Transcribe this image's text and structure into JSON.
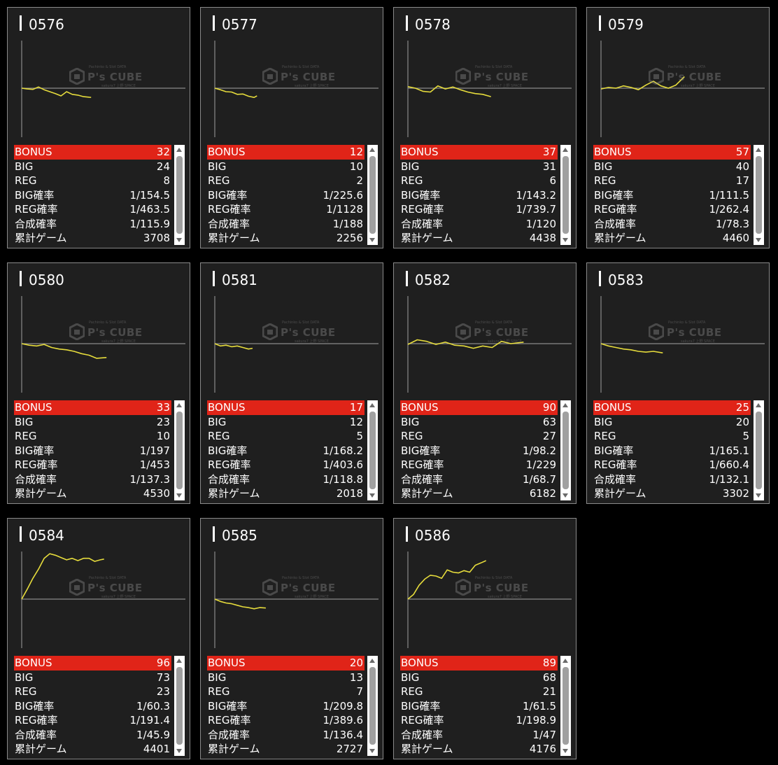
{
  "labels": {
    "bonus": "BONUS",
    "big": "BIG",
    "reg": "REG",
    "big_rate": "BIG確率",
    "reg_rate": "REG確率",
    "combined_rate": "合成確率",
    "total_games": "累計ゲーム"
  },
  "watermark": {
    "brand": "P's CUBE",
    "line1": "Pachinko & Slot DATA",
    "line2": "sakura7 上野 SPACE"
  },
  "colors": {
    "bonus_bg": "#e02418",
    "line": "#e6dc3c",
    "panel": "#1f1f1f"
  },
  "machines": [
    {
      "id": "0576",
      "bonus": "32",
      "big": "24",
      "reg": "8",
      "big_rate": "1/154.5",
      "reg_rate": "1/463.5",
      "combined_rate": "1/115.9",
      "total_games": "3708"
    },
    {
      "id": "0577",
      "bonus": "12",
      "big": "10",
      "reg": "2",
      "big_rate": "1/225.6",
      "reg_rate": "1/1128",
      "combined_rate": "1/188",
      "total_games": "2256"
    },
    {
      "id": "0578",
      "bonus": "37",
      "big": "31",
      "reg": "6",
      "big_rate": "1/143.2",
      "reg_rate": "1/739.7",
      "combined_rate": "1/120",
      "total_games": "4438"
    },
    {
      "id": "0579",
      "bonus": "57",
      "big": "40",
      "reg": "17",
      "big_rate": "1/111.5",
      "reg_rate": "1/262.4",
      "combined_rate": "1/78.3",
      "total_games": "4460"
    },
    {
      "id": "0580",
      "bonus": "33",
      "big": "23",
      "reg": "10",
      "big_rate": "1/197",
      "reg_rate": "1/453",
      "combined_rate": "1/137.3",
      "total_games": "4530"
    },
    {
      "id": "0581",
      "bonus": "17",
      "big": "12",
      "reg": "5",
      "big_rate": "1/168.2",
      "reg_rate": "1/403.6",
      "combined_rate": "1/118.8",
      "total_games": "2018"
    },
    {
      "id": "0582",
      "bonus": "90",
      "big": "63",
      "reg": "27",
      "big_rate": "1/98.2",
      "reg_rate": "1/229",
      "combined_rate": "1/68.7",
      "total_games": "6182"
    },
    {
      "id": "0583",
      "bonus": "25",
      "big": "20",
      "reg": "5",
      "big_rate": "1/165.1",
      "reg_rate": "1/660.4",
      "combined_rate": "1/132.1",
      "total_games": "3302"
    },
    {
      "id": "0584",
      "bonus": "96",
      "big": "73",
      "reg": "23",
      "big_rate": "1/60.3",
      "reg_rate": "1/191.4",
      "combined_rate": "1/45.9",
      "total_games": "4401"
    },
    {
      "id": "0585",
      "bonus": "20",
      "big": "13",
      "reg": "7",
      "big_rate": "1/209.8",
      "reg_rate": "1/389.6",
      "combined_rate": "1/136.4",
      "total_games": "2727"
    },
    {
      "id": "0586",
      "bonus": "89",
      "big": "68",
      "reg": "21",
      "big_rate": "1/61.5",
      "reg_rate": "1/198.9",
      "combined_rate": "1/47",
      "total_games": "4176"
    }
  ],
  "chart_data": [
    {
      "type": "line",
      "machine": "0576",
      "x": [
        0,
        300,
        600,
        900,
        1200,
        1500,
        1800,
        2100,
        2400,
        2700,
        3000,
        3300,
        3708
      ],
      "y": [
        0,
        -100,
        -150,
        150,
        -200,
        -450,
        -700,
        -1000,
        -450,
        -800,
        -900,
        -1100,
        -1200
      ]
    },
    {
      "type": "line",
      "machine": "0577",
      "x": [
        0,
        300,
        600,
        900,
        1200,
        1500,
        1800,
        2100,
        2256
      ],
      "y": [
        0,
        -200,
        -450,
        -500,
        -800,
        -750,
        -1050,
        -1200,
        -1000
      ]
    },
    {
      "type": "line",
      "machine": "0578",
      "x": [
        0,
        400,
        800,
        1200,
        1600,
        2000,
        2400,
        2800,
        3200,
        3600,
        4000,
        4438
      ],
      "y": [
        200,
        0,
        -400,
        -500,
        300,
        -100,
        150,
        -200,
        -500,
        -700,
        -800,
        -1100
      ]
    },
    {
      "type": "line",
      "machine": "0579",
      "x": [
        0,
        400,
        800,
        1200,
        1600,
        2000,
        2400,
        2800,
        3200,
        3600,
        4000,
        4460
      ],
      "y": [
        -100,
        100,
        0,
        300,
        100,
        -200,
        400,
        900,
        300,
        0,
        400,
        1500
      ]
    },
    {
      "type": "line",
      "machine": "0580",
      "x": [
        0,
        400,
        800,
        1200,
        1600,
        2000,
        2400,
        2800,
        3200,
        3600,
        4000,
        4530
      ],
      "y": [
        0,
        -200,
        -300,
        -100,
        -500,
        -700,
        -800,
        -1000,
        -1300,
        -1500,
        -1900,
        -1800
      ]
    },
    {
      "type": "line",
      "machine": "0581",
      "x": [
        0,
        300,
        600,
        900,
        1200,
        1500,
        1800,
        2018
      ],
      "y": [
        0,
        -300,
        -200,
        -400,
        -300,
        -500,
        -700,
        -600
      ]
    },
    {
      "type": "line",
      "machine": "0582",
      "x": [
        0,
        500,
        1000,
        1500,
        2000,
        2500,
        3000,
        3500,
        4000,
        4500,
        5000,
        5500,
        6182
      ],
      "y": [
        -100,
        500,
        300,
        -100,
        200,
        -200,
        -300,
        -600,
        -300,
        -500,
        300,
        0,
        200
      ]
    },
    {
      "type": "line",
      "machine": "0583",
      "x": [
        0,
        400,
        800,
        1200,
        1600,
        2000,
        2400,
        2800,
        3302
      ],
      "y": [
        0,
        -300,
        -500,
        -700,
        -800,
        -1000,
        -1100,
        -1000,
        -1200
      ]
    },
    {
      "type": "line",
      "machine": "0584",
      "x": [
        0,
        300,
        600,
        900,
        1200,
        1500,
        1800,
        2100,
        2400,
        2700,
        3000,
        3300,
        3600,
        3900,
        4200,
        4401
      ],
      "y": [
        0,
        1300,
        2700,
        3900,
        5300,
        5900,
        5700,
        5400,
        5100,
        5300,
        5000,
        5300,
        5300,
        4900,
        5100,
        5200
      ]
    },
    {
      "type": "line",
      "machine": "0585",
      "x": [
        0,
        300,
        600,
        900,
        1200,
        1500,
        1800,
        2100,
        2400,
        2727
      ],
      "y": [
        0,
        -300,
        -500,
        -600,
        -800,
        -1000,
        -1100,
        -1250,
        -1100,
        -1150
      ]
    },
    {
      "type": "line",
      "machine": "0586",
      "x": [
        0,
        300,
        600,
        900,
        1200,
        1500,
        1800,
        2100,
        2400,
        2700,
        3000,
        3300,
        3600,
        3900,
        4176
      ],
      "y": [
        0,
        600,
        1800,
        2600,
        3100,
        3000,
        2700,
        3800,
        3500,
        3400,
        3700,
        3500,
        4400,
        4700,
        5000
      ]
    }
  ]
}
